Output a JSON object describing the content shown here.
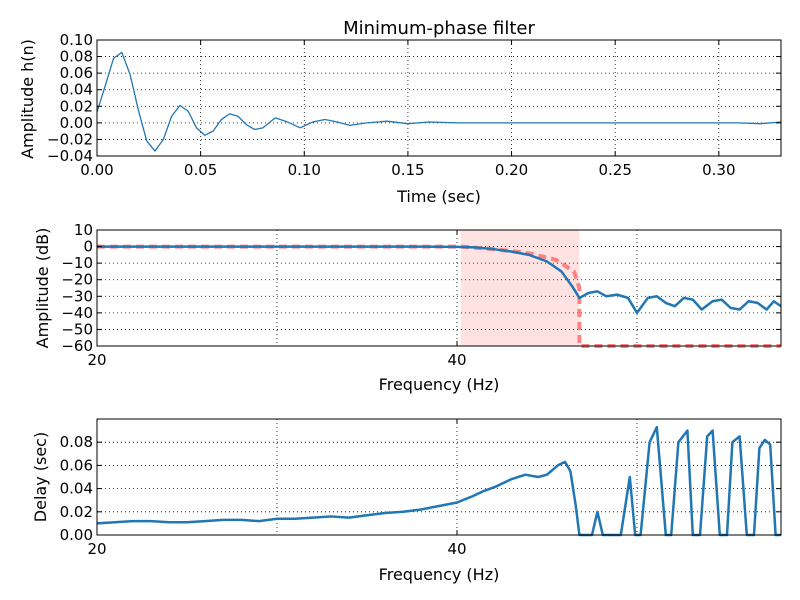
{
  "colors": {
    "line": "#2077b4",
    "ideal": "#ff6e6e",
    "band": "#ff9a9a"
  },
  "chart_data": [
    {
      "type": "line",
      "title": "Minimum-phase filter",
      "xlabel": "Time (sec)",
      "ylabel": "Amplitude h(n)",
      "xlim": [
        0,
        0.33
      ],
      "ylim": [
        -0.04,
        0.1
      ],
      "xticks": [
        0.0,
        0.05,
        0.1,
        0.15,
        0.2,
        0.25,
        0.3
      ],
      "xtick_labels": [
        "0.00",
        "0.05",
        "0.10",
        "0.15",
        "0.20",
        "0.25",
        "0.30"
      ],
      "yticks": [
        -0.04,
        -0.02,
        0.0,
        0.02,
        0.04,
        0.06,
        0.08,
        0.1
      ],
      "ytick_labels": [
        "−0.04",
        "−0.02",
        "0.00",
        "0.02",
        "0.04",
        "0.06",
        "0.08",
        "0.10"
      ],
      "grid": true,
      "series": [
        {
          "x": [
            0.0,
            0.004,
            0.008,
            0.012,
            0.016,
            0.02,
            0.024,
            0.028,
            0.032,
            0.036,
            0.04,
            0.044,
            0.048,
            0.052,
            0.056,
            0.06,
            0.064,
            0.068,
            0.072,
            0.076,
            0.08,
            0.086,
            0.092,
            0.098,
            0.104,
            0.11,
            0.116,
            0.122,
            0.13,
            0.14,
            0.15,
            0.16,
            0.175,
            0.19,
            0.21,
            0.23,
            0.25,
            0.27,
            0.29,
            0.31,
            0.32,
            0.33
          ],
          "y": [
            0.013,
            0.045,
            0.078,
            0.085,
            0.058,
            0.015,
            -0.022,
            -0.034,
            -0.02,
            0.008,
            0.021,
            0.014,
            -0.006,
            -0.015,
            -0.01,
            0.004,
            0.011,
            0.008,
            -0.002,
            -0.008,
            -0.006,
            0.006,
            0.001,
            -0.006,
            0.001,
            0.004,
            0.001,
            -0.003,
            0.0,
            0.002,
            -0.001,
            0.001,
            0.0,
            0.0,
            0.0,
            0.0,
            0.0,
            0.0,
            0.0,
            0.0,
            -0.001,
            0.001
          ]
        }
      ]
    },
    {
      "type": "line",
      "xlabel": "Frequency (Hz)",
      "ylabel": "Amplitude (dB)",
      "xlim": [
        20,
        58
      ],
      "ylim": [
        -60,
        10
      ],
      "xticks": [
        20,
        40
      ],
      "xtick_labels": [
        "20",
        "40"
      ],
      "yticks": [
        -60,
        -50,
        -40,
        -30,
        -20,
        -10,
        0,
        10
      ],
      "ytick_labels": [
        "−60",
        "−50",
        "−40",
        "−30",
        "−20",
        "−10",
        "0",
        "10"
      ],
      "grid": true,
      "shaded_band": [
        40.2,
        46.8
      ],
      "series": [
        {
          "name": "",
          "style": "ideal",
          "x": [
            20,
            40.2,
            42,
            44,
            45.5,
            46.5,
            46.8,
            46.8,
            58
          ],
          "y": [
            0,
            0,
            -1.5,
            -4,
            -8,
            -15,
            -25,
            -60,
            -60
          ]
        },
        {
          "name": "",
          "style": "actual",
          "x": [
            20,
            30,
            38,
            40,
            41,
            42,
            43,
            44,
            45,
            45.8,
            46.4,
            46.8,
            47.3,
            47.8,
            48.3,
            48.9,
            49.5,
            50.0,
            50.6,
            51.1,
            51.6,
            52.1,
            52.6,
            53.1,
            53.6,
            54.2,
            54.7,
            55.2,
            55.7,
            56.2,
            56.7,
            57.2,
            57.6,
            58.0
          ],
          "y": [
            0,
            0,
            0,
            -0.2,
            -0.5,
            -1.5,
            -3,
            -5,
            -9,
            -15,
            -24,
            -31,
            -28,
            -27,
            -30,
            -29,
            -31,
            -40,
            -31,
            -30,
            -34,
            -36,
            -31,
            -32,
            -38,
            -33,
            -32,
            -37,
            -38,
            -33,
            -34,
            -38,
            -33,
            -36
          ]
        }
      ]
    },
    {
      "type": "line",
      "xlabel": "Frequency (Hz)",
      "ylabel": "Delay (sec)",
      "xlim": [
        20,
        58
      ],
      "ylim": [
        0,
        0.1
      ],
      "xticks": [
        20,
        40
      ],
      "xtick_labels": [
        "20",
        "40"
      ],
      "yticks": [
        0,
        0.02,
        0.04,
        0.06,
        0.08
      ],
      "ytick_labels": [
        "0.00",
        "0.02",
        "0.04",
        "0.06",
        "0.08"
      ],
      "grid": true,
      "series": [
        {
          "x": [
            20,
            21,
            22,
            23,
            24,
            25,
            26,
            27,
            28,
            29,
            30,
            31,
            32,
            33,
            34,
            35,
            36,
            37,
            38,
            39,
            40,
            40.8,
            41.5,
            42.2,
            43,
            43.8,
            44.5,
            45,
            45.6,
            46.0,
            46.3,
            46.6,
            46.8,
            47.5,
            47.8,
            48.1,
            48.4,
            48.7,
            49.1,
            49.6,
            49.9,
            50.2,
            50.7,
            51.1,
            51.6,
            51.9,
            52.3,
            52.8,
            53.1,
            53.5,
            53.9,
            54.2,
            54.6,
            55.0,
            55.3,
            55.7,
            56.1,
            56.5,
            56.8,
            57.1,
            57.4,
            57.7,
            58.0
          ],
          "y": [
            0.01,
            0.011,
            0.012,
            0.012,
            0.011,
            0.011,
            0.012,
            0.013,
            0.013,
            0.012,
            0.014,
            0.014,
            0.015,
            0.016,
            0.015,
            0.017,
            0.019,
            0.02,
            0.022,
            0.025,
            0.028,
            0.033,
            0.038,
            0.042,
            0.048,
            0.052,
            0.05,
            0.052,
            0.06,
            0.063,
            0.055,
            0.025,
            0.0,
            0.0,
            0.02,
            0.0,
            0.0,
            0.0,
            0.0,
            0.05,
            0.0,
            0.0,
            0.08,
            0.093,
            0.0,
            0.0,
            0.08,
            0.09,
            0.0,
            0.0,
            0.085,
            0.09,
            0.0,
            0.0,
            0.08,
            0.085,
            0.0,
            0.0,
            0.075,
            0.082,
            0.078,
            0.0,
            0.0
          ]
        }
      ]
    }
  ]
}
